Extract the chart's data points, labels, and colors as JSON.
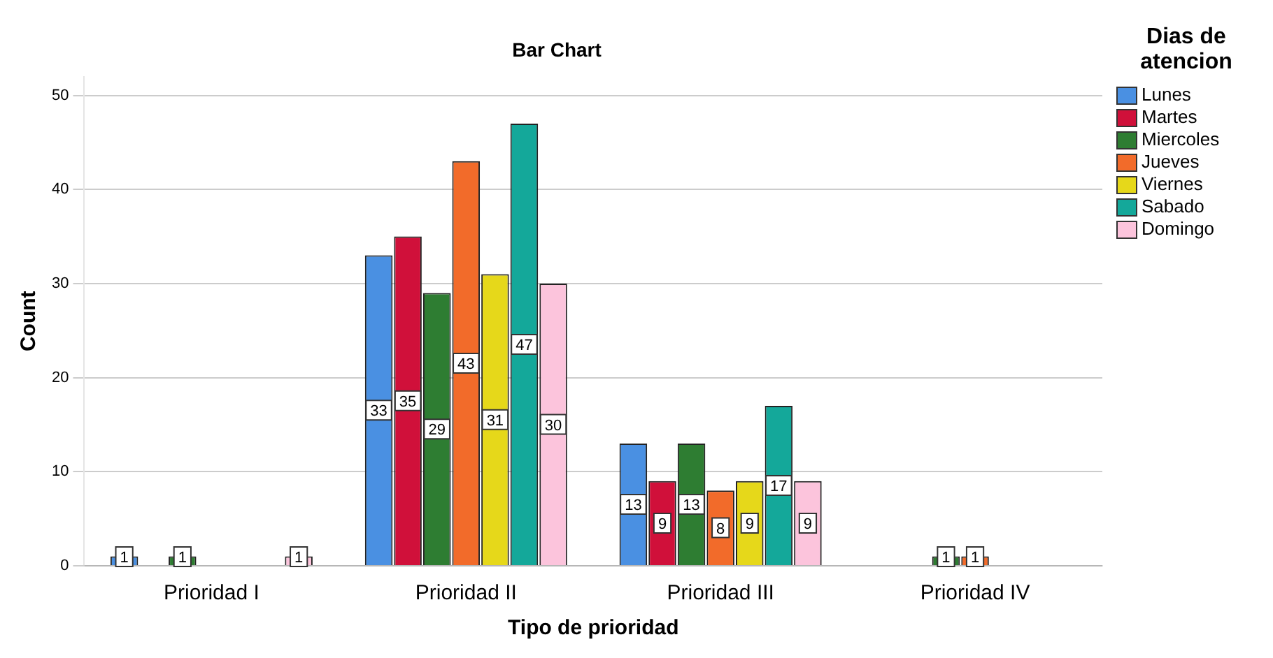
{
  "chart_data": {
    "type": "bar",
    "title": "Bar Chart",
    "xlabel": "Tipo de prioridad",
    "ylabel": "Count",
    "legend_title": "Dias de atencion",
    "categories": [
      "Prioridad I",
      "Prioridad II",
      "Prioridad III",
      "Prioridad IV"
    ],
    "series": [
      {
        "name": "Lunes",
        "color": "#4a90e2",
        "values": [
          1,
          33,
          13,
          null
        ]
      },
      {
        "name": "Martes",
        "color": "#d0103a",
        "values": [
          null,
          35,
          9,
          null
        ]
      },
      {
        "name": "Miercoles",
        "color": "#2e7d32",
        "values": [
          1,
          29,
          13,
          1
        ]
      },
      {
        "name": "Jueves",
        "color": "#f26b2a",
        "values": [
          null,
          43,
          8,
          1
        ]
      },
      {
        "name": "Viernes",
        "color": "#e6d81a",
        "values": [
          null,
          31,
          9,
          null
        ]
      },
      {
        "name": "Sabado",
        "color": "#14a89a",
        "values": [
          null,
          47,
          17,
          null
        ]
      },
      {
        "name": "Domingo",
        "color": "#fcc4dc",
        "values": [
          1,
          30,
          9,
          null
        ]
      }
    ],
    "ylim": [
      0,
      52
    ],
    "yticks": [
      0,
      10,
      20,
      30,
      40,
      50
    ],
    "grid": "y",
    "legend": "top right",
    "data_labels": true
  }
}
